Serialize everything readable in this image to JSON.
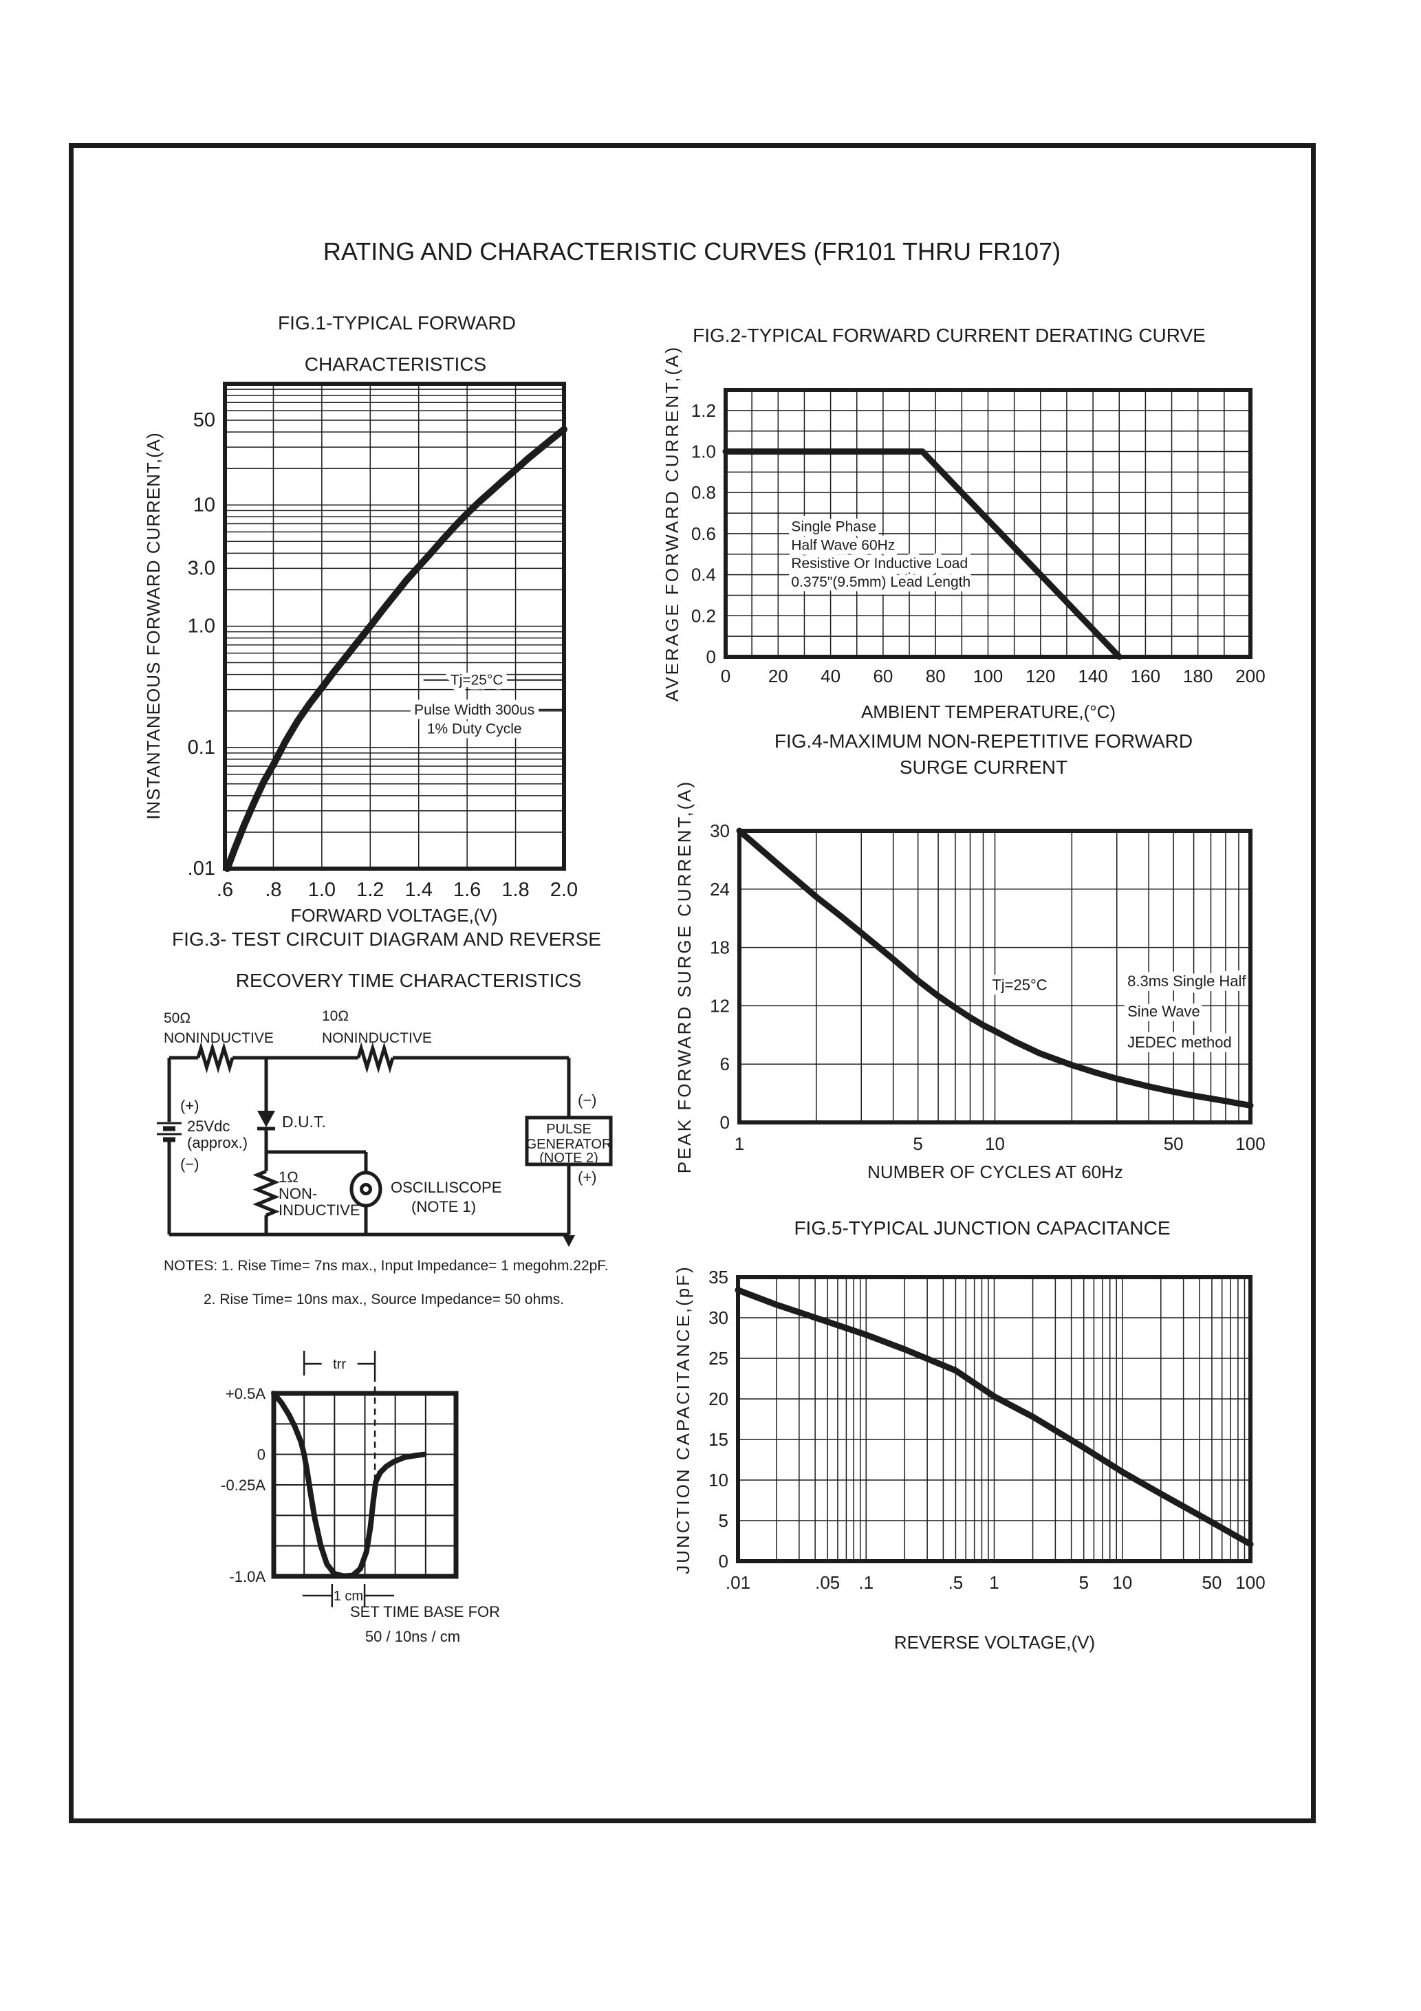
{
  "page": {
    "title": "RATING AND CHARACTERISTIC CURVES (FR101 THRU FR107)"
  },
  "colors": {
    "ink": "#1c1c1c",
    "paper": "#ffffff"
  },
  "figures": {
    "fig1": {
      "title_line1": "FIG.1-TYPICAL FORWARD",
      "title_line2": "CHARACTERISTICS"
    },
    "fig2": {
      "title": "FIG.2-TYPICAL FORWARD CURRENT DERATING CURVE"
    },
    "fig3": {
      "title_line1": "FIG.3- TEST CIRCUIT DIAGRAM AND REVERSE",
      "title_line2": "RECOVERY TIME CHARACTERISTICS",
      "notes_line1": "NOTES: 1. Rise Time= 7ns max., Input Impedance= 1 megohm.22pF.",
      "notes_line2": "2. Rise Time= 10ns max., Source Impedance= 50 ohms.",
      "circuit": {
        "r1_value": "50Ω",
        "r1_type": "NONINDUCTIVE",
        "r2_value": "10Ω",
        "r2_type": "NONINDUCTIVE",
        "battery_plus": "(+)",
        "battery_value": "25Vdc",
        "battery_approx": "(approx.)",
        "battery_minus": "(−)",
        "dut_label": "D.U.T.",
        "r3_value": "1Ω",
        "r3_line2": "NON-",
        "r3_line3": "INDUCTIVE",
        "scope_line1": "OSCILLISCOPE",
        "scope_line2": "(NOTE 1)",
        "pulse_line1": "PULSE",
        "pulse_line2": "GENERATOR",
        "pulse_line3": "(NOTE 2)",
        "gen_minus": "(−)",
        "gen_plus": "(+)"
      }
    },
    "fig4": {
      "title_line1": "FIG.4-MAXIMUM NON-REPETITIVE FORWARD",
      "title_line2": "SURGE CURRENT"
    },
    "fig5": {
      "title": "FIG.5-TYPICAL JUNCTION CAPACITANCE"
    },
    "waveform": {
      "caption_line1": "SET TIME BASE FOR",
      "caption_line2": "50 / 10ns / cm"
    }
  },
  "chart_data": [
    {
      "id": "fig1",
      "type": "line",
      "title": "FIG.1-TYPICAL FORWARD CHARACTERISTICS",
      "xlabel": "FORWARD VOLTAGE,(V)",
      "ylabel": "INSTANTANEOUS FORWARD CURRENT,(A)",
      "xscale": "linear",
      "yscale": "log",
      "xlim": [
        0.6,
        2.0
      ],
      "ylim": [
        0.01,
        100
      ],
      "xticks": {
        "values": [
          0.6,
          0.8,
          1.0,
          1.2,
          1.4,
          1.6,
          1.8,
          2.0
        ],
        "labels": [
          ".6",
          ".8",
          "1.0",
          "1.2",
          "1.4",
          "1.6",
          "1.8",
          "2.0"
        ]
      },
      "yticks": {
        "values": [
          50,
          10,
          3.0,
          1.0,
          0.1,
          0.01
        ],
        "labels": [
          "50",
          "10",
          "3.0",
          "1.0",
          "0.1",
          ".01"
        ]
      },
      "xgrid": {
        "step": 0.2
      },
      "ygrid": {
        "log_minor": true
      },
      "series": [
        {
          "name": "instantaneous forward current",
          "points": [
            [
              0.61,
              0.01
            ],
            [
              0.64,
              0.0145
            ],
            [
              0.68,
              0.023
            ],
            [
              0.72,
              0.035
            ],
            [
              0.76,
              0.052
            ],
            [
              0.8,
              0.072
            ],
            [
              0.85,
              0.112
            ],
            [
              0.9,
              0.165
            ],
            [
              0.95,
              0.23
            ],
            [
              1.0,
              0.31
            ],
            [
              1.05,
              0.42
            ],
            [
              1.1,
              0.56
            ],
            [
              1.15,
              0.75
            ],
            [
              1.2,
              1.0
            ],
            [
              1.25,
              1.35
            ],
            [
              1.3,
              1.8
            ],
            [
              1.35,
              2.4
            ],
            [
              1.4,
              3.1
            ],
            [
              1.45,
              4.0
            ],
            [
              1.5,
              5.2
            ],
            [
              1.55,
              6.7
            ],
            [
              1.6,
              8.5
            ],
            [
              1.65,
              10.6
            ],
            [
              1.7,
              13.0
            ],
            [
              1.75,
              16.0
            ],
            [
              1.8,
              19.5
            ],
            [
              1.85,
              24.0
            ],
            [
              1.9,
              29.0
            ],
            [
              1.95,
              35.0
            ],
            [
              2.0,
              42.0
            ]
          ]
        }
      ],
      "annotations": [
        {
          "text": "Tj=25°C",
          "x": 1.64,
          "y": 0.36,
          "anchor": "middle",
          "line_from": 1.42,
          "line_to_edge": true
        },
        {
          "text": "Pulse Width 300us",
          "x": 1.63,
          "y": 0.205,
          "anchor": "middle",
          "line_from": 1.63,
          "line_to_edge": true
        },
        {
          "text": "1% Duty Cycle",
          "x": 1.63,
          "y": 0.143,
          "anchor": "middle"
        }
      ]
    },
    {
      "id": "fig2",
      "type": "line",
      "title": "FIG.2-TYPICAL FORWARD CURRENT DERATING CURVE",
      "xlabel": "AMBIENT TEMPERATURE,(°C)",
      "ylabel": "AVERAGE FORWARD CURRENT,(A)",
      "xscale": "linear",
      "yscale": "linear",
      "xlim": [
        0,
        200
      ],
      "ylim": [
        0,
        1.3
      ],
      "xticks": {
        "values": [
          0,
          20,
          40,
          60,
          80,
          100,
          120,
          140,
          160,
          180,
          200
        ],
        "labels": [
          "0",
          "20",
          "40",
          "60",
          "80",
          "100",
          "120",
          "140",
          "160",
          "180",
          "200"
        ]
      },
      "yticks": {
        "values": [
          0,
          0.2,
          0.4,
          0.6,
          0.8,
          1.0,
          1.2
        ],
        "labels": [
          "0",
          "0.2",
          "0.4",
          "0.6",
          "0.8",
          "1.0",
          "1.2"
        ]
      },
      "xgrid": {
        "step": 10
      },
      "ygrid": {
        "step": 0.1
      },
      "series": [
        {
          "name": "average forward current derating",
          "points": [
            [
              0,
              1.0
            ],
            [
              75,
              1.0
            ],
            [
              150,
              0.0
            ]
          ]
        }
      ],
      "annotations": [
        {
          "text": "Single Phase",
          "x": 25,
          "y": 0.635,
          "anchor": "start"
        },
        {
          "text": "Half Wave 60Hz",
          "x": 25,
          "y": 0.545,
          "anchor": "start"
        },
        {
          "text": "Resistive Or Inductive Load",
          "x": 25,
          "y": 0.455,
          "anchor": "start"
        },
        {
          "text": "0.375\"(9.5mm) Lead Length",
          "x": 25,
          "y": 0.365,
          "anchor": "start"
        }
      ]
    },
    {
      "id": "fig4",
      "type": "line",
      "title": "FIG.4-MAXIMUM NON-REPETITIVE FORWARD SURGE CURRENT",
      "xlabel": "NUMBER OF CYCLES AT 60Hz",
      "ylabel": "PEAK FORWARD SURGE CURRENT,(A)",
      "xscale": "log",
      "yscale": "linear",
      "xlim": [
        1,
        100
      ],
      "ylim": [
        0,
        30
      ],
      "xticks": {
        "values": [
          1,
          5,
          10,
          50,
          100
        ],
        "labels": [
          "1",
          "5",
          "10",
          "50",
          "100"
        ]
      },
      "yticks": {
        "values": [
          0,
          6,
          12,
          18,
          24,
          30
        ],
        "labels": [
          "0",
          "6",
          "12",
          "18",
          "24",
          "30"
        ]
      },
      "xgrid": {
        "log_minor": true
      },
      "ygrid": {
        "step": 6
      },
      "series": [
        {
          "name": "peak forward surge current",
          "points": [
            [
              1,
              30
            ],
            [
              1.2,
              28.2
            ],
            [
              1.5,
              26
            ],
            [
              2,
              23.2
            ],
            [
              2.5,
              21.2
            ],
            [
              3,
              19.5
            ],
            [
              4,
              16.8
            ],
            [
              5,
              14.6
            ],
            [
              6,
              13.0
            ],
            [
              7,
              11.8
            ],
            [
              8,
              10.8
            ],
            [
              9,
              10.0
            ],
            [
              10,
              9.4
            ],
            [
              12,
              8.3
            ],
            [
              15,
              7.1
            ],
            [
              20,
              5.9
            ],
            [
              25,
              5.1
            ],
            [
              30,
              4.5
            ],
            [
              40,
              3.7
            ],
            [
              50,
              3.15
            ],
            [
              60,
              2.75
            ],
            [
              70,
              2.45
            ],
            [
              80,
              2.2
            ],
            [
              90,
              1.95
            ],
            [
              100,
              1.75
            ]
          ]
        }
      ],
      "annotations": [
        {
          "text": "Tj=25°C",
          "x": 12.5,
          "y": 14.1,
          "anchor": "middle"
        },
        {
          "text": "8.3ms Single Half",
          "x": 33,
          "y": 14.5,
          "anchor": "start"
        },
        {
          "text": "Sine Wave",
          "x": 33,
          "y": 11.4,
          "anchor": "start"
        },
        {
          "text": "JEDEC method",
          "x": 33,
          "y": 8.2,
          "anchor": "start"
        }
      ]
    },
    {
      "id": "fig5",
      "type": "line",
      "title": "FIG.5-TYPICAL JUNCTION CAPACITANCE",
      "xlabel": "REVERSE VOLTAGE,(V)",
      "ylabel": "JUNCTION CAPACITANCE,(pF)",
      "xscale": "log",
      "yscale": "linear",
      "xlim": [
        0.01,
        100
      ],
      "ylim": [
        0,
        35
      ],
      "xticks": {
        "values": [
          0.01,
          0.05,
          0.1,
          0.5,
          1,
          5,
          10,
          50,
          100
        ],
        "labels": [
          ".01",
          ".05",
          ".1",
          ".5",
          "1",
          "5",
          "10",
          "50",
          "100"
        ]
      },
      "yticks": {
        "values": [
          0,
          5,
          10,
          15,
          20,
          25,
          30,
          35
        ],
        "labels": [
          "0",
          "5",
          "10",
          "15",
          "20",
          "25",
          "30",
          "35"
        ]
      },
      "xgrid": {
        "log_minor": true
      },
      "ygrid": {
        "step": 5
      },
      "series": [
        {
          "name": "junction capacitance",
          "points": [
            [
              0.01,
              33.4
            ],
            [
              0.02,
              31.6
            ],
            [
              0.05,
              29.5
            ],
            [
              0.1,
              27.9
            ],
            [
              0.2,
              26.1
            ],
            [
              0.5,
              23.5
            ],
            [
              1,
              20.3
            ],
            [
              2,
              17.8
            ],
            [
              5,
              14.0
            ],
            [
              10,
              11.0
            ],
            [
              20,
              8.3
            ],
            [
              50,
              4.8
            ],
            [
              100,
              2.1
            ]
          ]
        }
      ],
      "annotations": []
    },
    {
      "id": "waveform",
      "type": "line",
      "title": "Reverse recovery oscilloscope trace",
      "grid_cols": 6,
      "grid_rows": 6,
      "y_axis_labels": [
        {
          "row": 0,
          "label": "+0.5A"
        },
        {
          "row": 2,
          "label": "0"
        },
        {
          "row": 3,
          "label": "-0.25A"
        },
        {
          "row": 6,
          "label": "-1.0A"
        }
      ],
      "trr_label": "trr",
      "cm_label": "1 cm",
      "trr_span_cells": [
        1.0,
        3.33
      ],
      "cm_span_cells": [
        1.92,
        2.99
      ],
      "points_cells": [
        [
          0,
          0
        ],
        [
          0.25,
          0.3
        ],
        [
          0.5,
          0.7
        ],
        [
          0.7,
          1.1
        ],
        [
          0.9,
          1.6
        ],
        [
          1.0,
          2.0
        ],
        [
          1.1,
          2.55
        ],
        [
          1.2,
          3.2
        ],
        [
          1.35,
          4.1
        ],
        [
          1.55,
          5.0
        ],
        [
          1.75,
          5.6
        ],
        [
          2.0,
          5.92
        ],
        [
          2.3,
          5.99
        ],
        [
          2.6,
          5.97
        ],
        [
          2.85,
          5.75
        ],
        [
          3.05,
          5.2
        ],
        [
          3.18,
          4.4
        ],
        [
          3.28,
          3.5
        ],
        [
          3.36,
          2.9
        ],
        [
          3.5,
          2.6
        ],
        [
          3.7,
          2.4
        ],
        [
          3.95,
          2.24
        ],
        [
          4.3,
          2.1
        ],
        [
          4.65,
          2.04
        ],
        [
          4.95,
          2.0
        ]
      ]
    }
  ]
}
